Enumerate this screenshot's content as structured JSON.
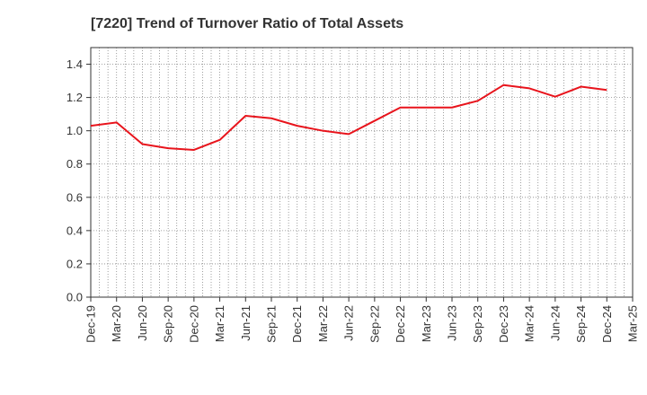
{
  "chart_data": {
    "type": "line",
    "title": "[7220]  Trend of Turnover Ratio of Total Assets",
    "xlabel": "",
    "ylabel": "",
    "ylim": [
      0,
      1.5
    ],
    "yticks": [
      "0.0",
      "0.2",
      "0.4",
      "0.6",
      "0.8",
      "1.0",
      "1.2",
      "1.4"
    ],
    "xticks": [
      "Dec-19",
      "Mar-20",
      "Jun-20",
      "Sep-20",
      "Dec-20",
      "Mar-21",
      "Jun-21",
      "Sep-21",
      "Dec-21",
      "Mar-22",
      "Jun-22",
      "Sep-22",
      "Dec-22",
      "Mar-23",
      "Jun-23",
      "Sep-23",
      "Dec-23",
      "Mar-24",
      "Jun-24",
      "Sep-24",
      "Dec-24",
      "Mar-25"
    ],
    "grid": true,
    "line_color": "#e8141c",
    "series": [
      {
        "x": [
          "Dec-19",
          "Mar-20",
          "Jun-20",
          "Sep-20",
          "Dec-20",
          "Mar-21",
          "Jun-21",
          "Sep-21",
          "Dec-21",
          "Mar-22",
          "Jun-22",
          "Sep-22",
          "Dec-22",
          "Mar-23",
          "Jun-23",
          "Sep-23",
          "Dec-23",
          "Mar-24",
          "Jun-24",
          "Sep-24",
          "Dec-24"
        ],
        "values": [
          1.03,
          1.05,
          0.92,
          0.895,
          0.885,
          0.945,
          1.09,
          1.075,
          1.03,
          1.0,
          0.98,
          1.06,
          1.14,
          1.14,
          1.14,
          1.18,
          1.275,
          1.255,
          1.205,
          1.265,
          1.245
        ]
      }
    ]
  }
}
